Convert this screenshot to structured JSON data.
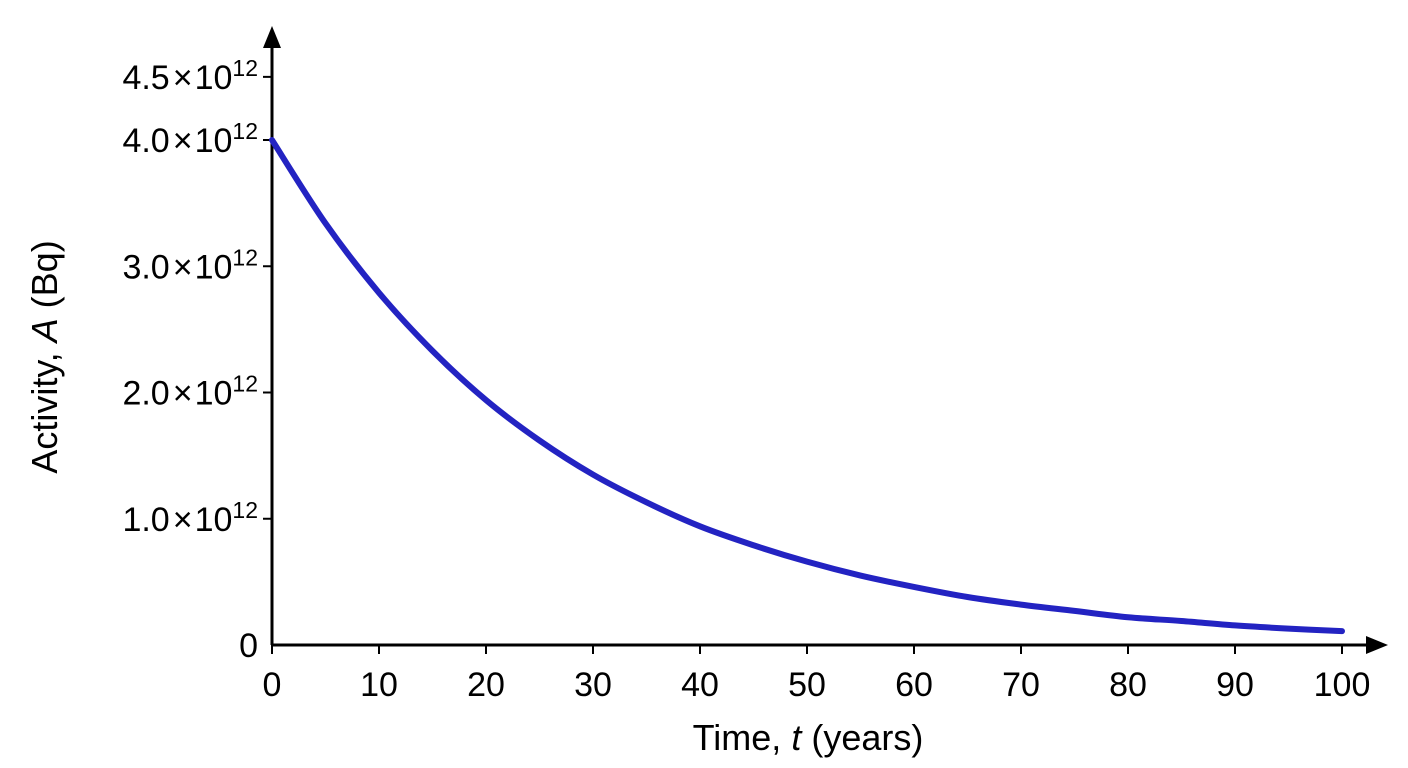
{
  "chart_data": {
    "type": "line",
    "title": "",
    "xlabel": {
      "prefix": "Time, ",
      "var": "t",
      "suffix": " (years)"
    },
    "ylabel": {
      "prefix": "Activity, ",
      "var": "A",
      "suffix": " (Bq)"
    },
    "xlim": [
      0,
      100
    ],
    "ylim": [
      0,
      4500000000000.0
    ],
    "grid": false,
    "x_ticks": [
      {
        "value": 0,
        "label": "0"
      },
      {
        "value": 10,
        "label": "10"
      },
      {
        "value": 20,
        "label": "20"
      },
      {
        "value": 30,
        "label": "30"
      },
      {
        "value": 40,
        "label": "40"
      },
      {
        "value": 50,
        "label": "50"
      },
      {
        "value": 60,
        "label": "60"
      },
      {
        "value": 70,
        "label": "70"
      },
      {
        "value": 80,
        "label": "80"
      },
      {
        "value": 90,
        "label": "90"
      },
      {
        "value": 100,
        "label": "100"
      }
    ],
    "y_ticks": [
      {
        "value": 0,
        "mantissa": "0",
        "times": "",
        "base": "",
        "exp": ""
      },
      {
        "value": 1000000000000.0,
        "mantissa": "1.0",
        "times": "×",
        "base": "10",
        "exp": "12"
      },
      {
        "value": 2000000000000.0,
        "mantissa": "2.0",
        "times": "×",
        "base": "10",
        "exp": "12"
      },
      {
        "value": 3000000000000.0,
        "mantissa": "3.0",
        "times": "×",
        "base": "10",
        "exp": "12"
      },
      {
        "value": 4000000000000.0,
        "mantissa": "4.0",
        "times": "×",
        "base": "10",
        "exp": "12"
      },
      {
        "value": 4500000000000.0,
        "mantissa": "4.5",
        "times": "×",
        "base": "10",
        "exp": "12"
      }
    ],
    "series": [
      {
        "color": "#2323c2",
        "x": [
          0,
          5,
          10,
          15,
          20,
          25,
          30,
          35,
          40,
          45,
          50,
          55,
          60,
          65,
          70,
          75,
          80,
          85,
          90,
          95,
          100
        ],
        "y": [
          4000000000000.0,
          3340000000000.0,
          2790000000000.0,
          2330000000000.0,
          1940000000000.0,
          1620000000000.0,
          1350000000000.0,
          1130000000000.0,
          940000000000.0,
          790000000000.0,
          660000000000.0,
          550000000000.0,
          460000000000.0,
          380000000000.0,
          320000000000.0,
          270000000000.0,
          220000000000.0,
          190000000000.0,
          155000000000.0,
          130000000000.0,
          110000000000.0
        ]
      }
    ]
  }
}
